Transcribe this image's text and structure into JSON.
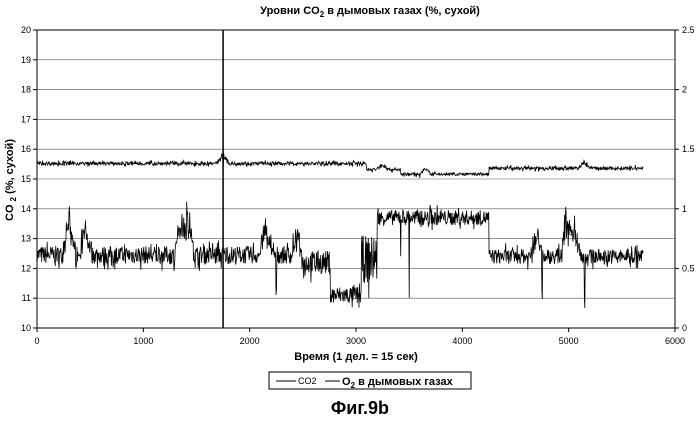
{
  "figure_caption": "Фиг.9b",
  "chart_data": {
    "type": "line",
    "title": {
      "prefix": "Уровни CO",
      "sub": "2",
      "suffix": " в дымовых газах (%, сухой)"
    },
    "xlabel": "Время (1 дел. = 15 сек)",
    "ylabel": {
      "prefix": "CO ",
      "sub": "2",
      "suffix": " (%, сухой)"
    },
    "xlim": [
      0,
      6000
    ],
    "ylim": [
      10,
      20
    ],
    "y2lim": [
      0,
      2.5
    ],
    "x_ticks": [
      "0",
      "1000",
      "2000",
      "3000",
      "4000",
      "5000",
      "6000"
    ],
    "y_ticks": [
      "10",
      "11",
      "12",
      "13",
      "14",
      "15",
      "16",
      "17",
      "18",
      "19",
      "20"
    ],
    "y2_ticks": [
      "0",
      "0.5",
      "1",
      "1.5",
      "2",
      "2.5"
    ],
    "grid": "horizontal",
    "legend_placement": "bottom-center",
    "vertical_marker_x": 1750,
    "series": [
      {
        "name": "CO2",
        "axis": "left",
        "segments": [
          {
            "from": 0,
            "to": 2480,
            "level": 12.45,
            "noise": 0.3
          },
          {
            "from": 2480,
            "to": 2760,
            "level": 12.2,
            "noise": 0.4
          },
          {
            "from": 2760,
            "to": 3050,
            "level": 11.1,
            "noise": 0.3
          },
          {
            "from": 3050,
            "to": 3200,
            "level": 12.3,
            "noise": 0.8
          },
          {
            "from": 3200,
            "to": 4250,
            "level": 13.7,
            "noise": 0.25
          },
          {
            "from": 4250,
            "to": 5700,
            "level": 12.4,
            "noise": 0.25
          }
        ],
        "bursts": [
          {
            "x": 300,
            "height": 1.2
          },
          {
            "x": 450,
            "height": 0.8
          },
          {
            "x": 1350,
            "height": 1.0
          },
          {
            "x": 1420,
            "height": 1.5
          },
          {
            "x": 2150,
            "height": 1.0
          },
          {
            "x": 2450,
            "height": 0.7
          },
          {
            "x": 4700,
            "height": 1.0
          },
          {
            "x": 4980,
            "height": 1.3
          },
          {
            "x": 5050,
            "height": 1.0
          }
        ],
        "dips": [
          {
            "x": 2250,
            "depth": 1.4
          },
          {
            "x": 3500,
            "depth": 2.5
          },
          {
            "x": 3420,
            "depth": 1.0
          },
          {
            "x": 4750,
            "depth": 1.6
          },
          {
            "x": 5150,
            "depth": 1.5
          }
        ]
      },
      {
        "name": "O2 в дымовых газах",
        "legend_label": {
          "prefix": "O",
          "sub": "2",
          "suffix": " в дымовых газах"
        },
        "axis": "right",
        "segments": [
          {
            "from": 0,
            "to": 3100,
            "level": 1.38,
            "noise": 0.015
          },
          {
            "from": 3100,
            "to": 3420,
            "level": 1.33,
            "noise": 0.015
          },
          {
            "from": 3420,
            "to": 4250,
            "level": 1.29,
            "noise": 0.012
          },
          {
            "from": 4250,
            "to": 5700,
            "level": 1.34,
            "noise": 0.015
          }
        ],
        "bursts": [
          {
            "x": 1750,
            "height": 0.08
          },
          {
            "x": 3250,
            "height": 0.05
          },
          {
            "x": 3650,
            "height": 0.05
          },
          {
            "x": 5150,
            "height": 0.06
          }
        ],
        "dips": [
          {
            "x": 1750,
            "depth": 0.05
          },
          {
            "x": 3600,
            "depth": 0.04
          }
        ]
      }
    ]
  }
}
